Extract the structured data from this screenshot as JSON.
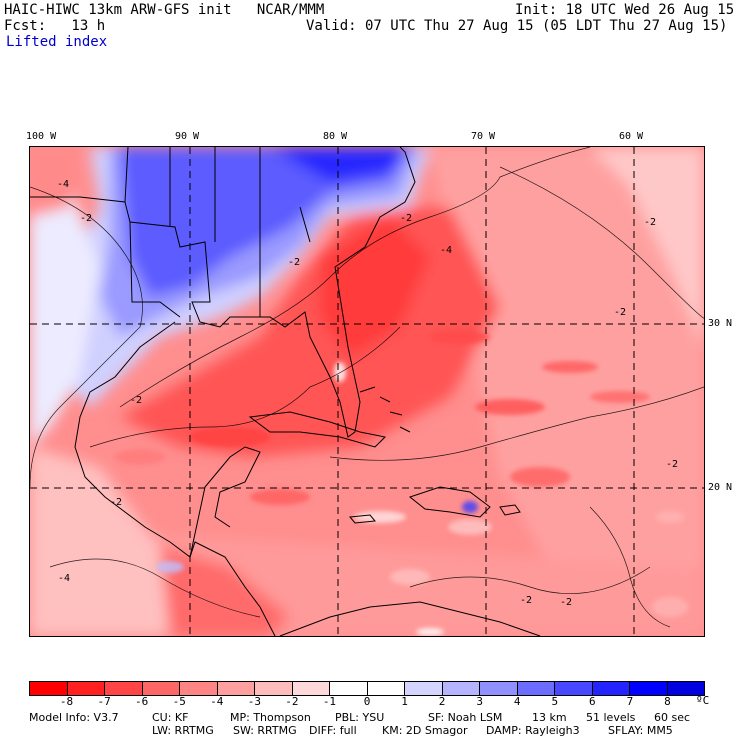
{
  "header": {
    "line1_left": "HAIC-HIWC 13km ARW-GFS init   NCAR/MMM",
    "line1_right": "Init: 18 UTC Wed 26 Aug 15",
    "line2_left": "Fcst:   13 h",
    "line2_right": "Valid: 07 UTC Thu 27 Aug 15 (05 LDT Thu 27 Aug 15)",
    "field_name": "Lifted index"
  },
  "map": {
    "lon_labels": [
      "100 W",
      "90 W",
      "80 W",
      "70 W",
      "60 W"
    ],
    "lat_labels": [
      "30 N",
      "20 N"
    ],
    "contour_labels": [
      "-4",
      "-2",
      "-4",
      "-2",
      "-2",
      "-2",
      "-2",
      "-2",
      "-2",
      "-2",
      "-2",
      "-4",
      "-2"
    ]
  },
  "colorbar": {
    "colors": [
      "#ff0000",
      "#ff2020",
      "#ff4545",
      "#ff6666",
      "#ff8585",
      "#ffa0a0",
      "#ffbcbc",
      "#ffd9d9",
      "#ffffff",
      "#ffffff",
      "#d4d4ff",
      "#b4b4ff",
      "#9090ff",
      "#6c6cff",
      "#4848ff",
      "#2424ff",
      "#0000ff",
      "#0000e0"
    ],
    "tick_labels": [
      "-8",
      "-7",
      "-6",
      "-5",
      "-4",
      "-3",
      "-2",
      "-1",
      "0",
      "1",
      "2",
      "3",
      "4",
      "5",
      "6",
      "7",
      "8"
    ],
    "unit": "ºC"
  },
  "footer": {
    "line1": [
      "Model Info: V3.7",
      "CU: KF",
      "MP: Thompson",
      "PBL: YSU",
      "SF: Noah LSM",
      "13 km",
      "51 levels",
      "60 sec"
    ],
    "line2": [
      "LW: RRTMG",
      "SW: RRTMG",
      "DIFF: full",
      "KM: 2D Smagor",
      "DAMP: Rayleigh3",
      "SFLAY: MM5"
    ]
  }
}
